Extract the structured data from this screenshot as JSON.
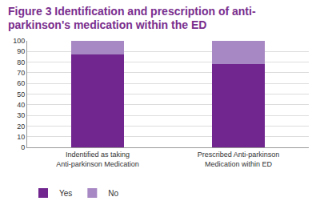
{
  "chart_data": {
    "type": "bar",
    "title": "Figure 3 Identification and prescription of anti-parkinson's medication within the ED",
    "categories": [
      "Indentified as taking Anti-parkinson Medication",
      "Prescribed Anti-parkinson Medication within ED"
    ],
    "series": [
      {
        "name": "Yes",
        "color": "#70258f",
        "values": [
          87,
          78
        ]
      },
      {
        "name": "No",
        "color": "#a888c4",
        "values": [
          13,
          22
        ]
      }
    ],
    "stacked": true,
    "ylim": [
      0,
      100
    ],
    "yticks": [
      0,
      10,
      20,
      30,
      40,
      50,
      60,
      70,
      80,
      90,
      100
    ],
    "grid": true,
    "legend": "bottom-left"
  }
}
